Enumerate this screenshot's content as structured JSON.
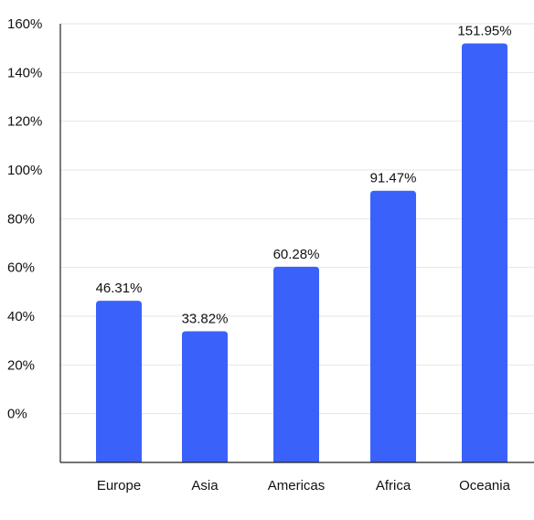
{
  "chart_data": {
    "type": "bar",
    "title": "",
    "xlabel": "",
    "ylabel": "",
    "categories": [
      "Europe",
      "Asia",
      "Americas",
      "Africa",
      "Oceania"
    ],
    "values": [
      46.31,
      33.82,
      60.28,
      91.47,
      151.95
    ],
    "value_labels": [
      "46.31%",
      "33.82%",
      "60.28%",
      "91.47%",
      "151.95%"
    ],
    "y_ticks": [
      0,
      20,
      40,
      60,
      80,
      100,
      120,
      140,
      160
    ],
    "y_tick_labels": [
      "0%",
      "20%",
      "40%",
      "60%",
      "80%",
      "100%",
      "120%",
      "140%",
      "160%"
    ],
    "ylim": [
      -20,
      160
    ],
    "grid": true,
    "legend": "none",
    "bar_color": "#3a62fb"
  }
}
